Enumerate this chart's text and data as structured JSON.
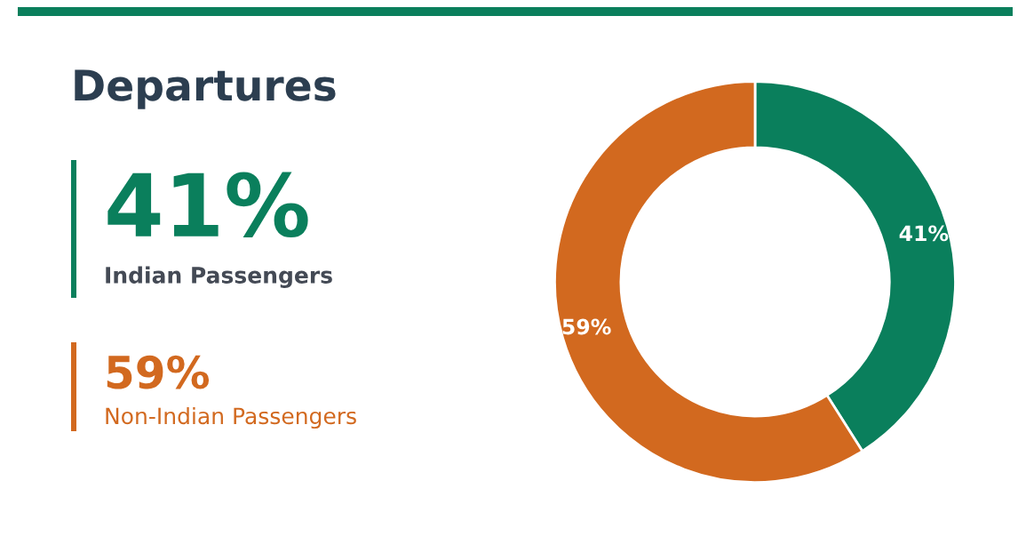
{
  "chart_data": {
    "type": "donut",
    "title": "Departures",
    "categories": [
      "Indian Passengers",
      "Non-Indian Passengers"
    ],
    "values": [
      41,
      59
    ],
    "colors": [
      "#0a7f5c",
      "#d2691f"
    ],
    "value_labels": [
      "41%",
      "59%"
    ],
    "legend": "left"
  }
}
